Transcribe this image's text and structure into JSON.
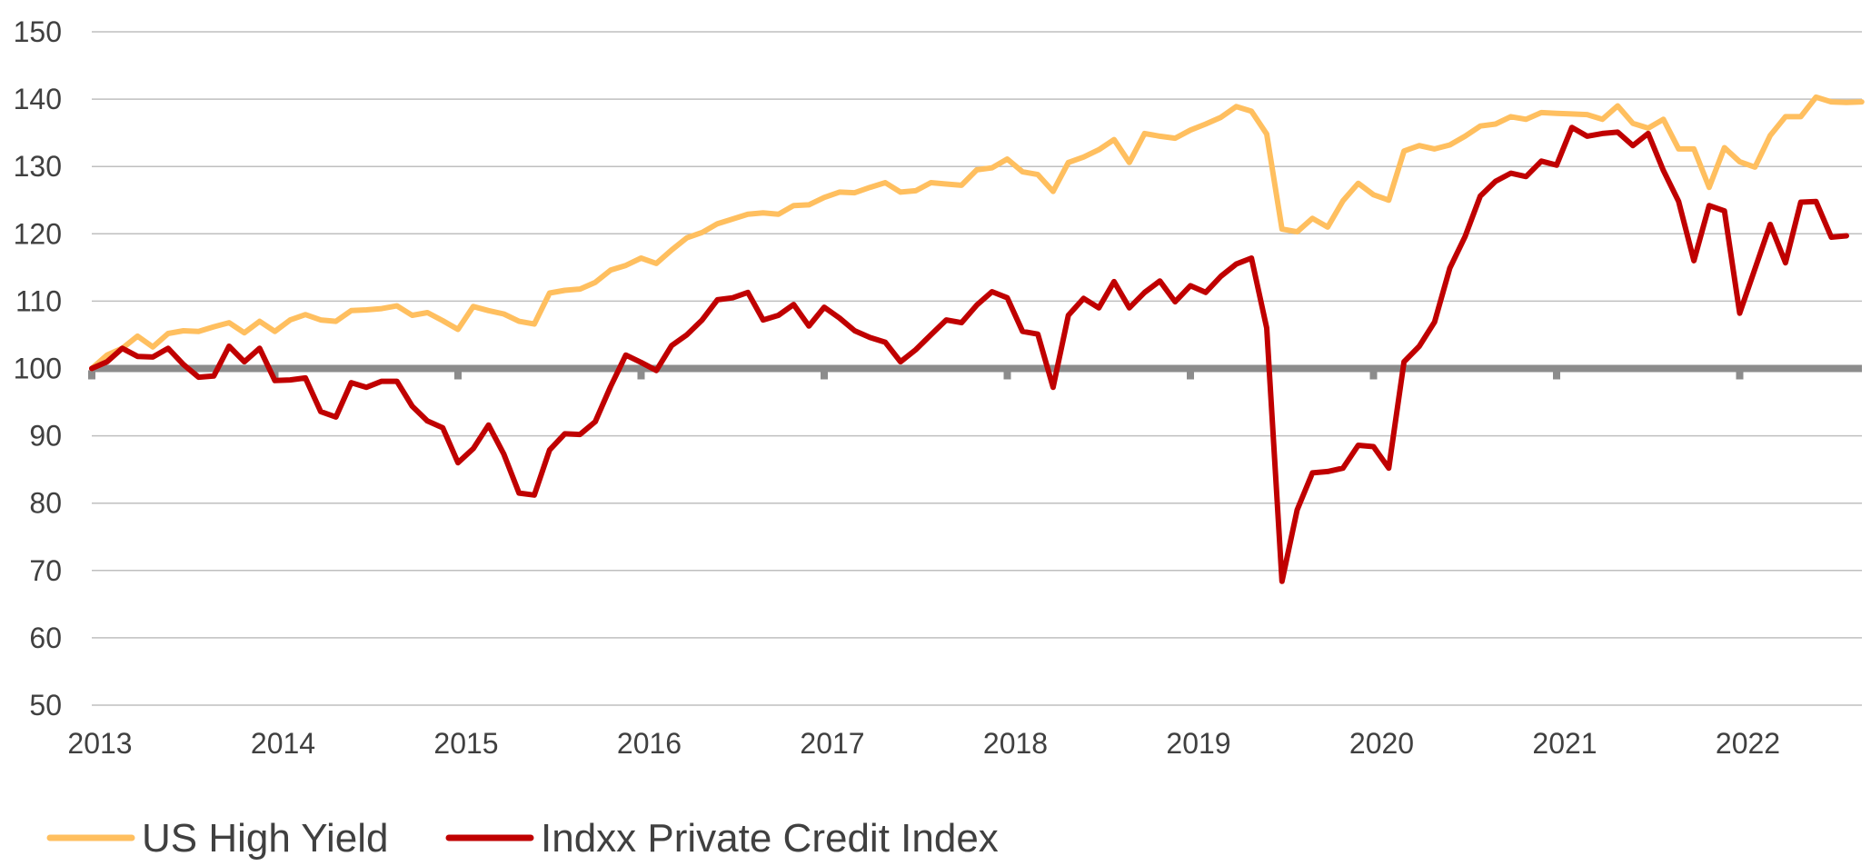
{
  "chart_data": {
    "type": "line",
    "title": "",
    "xlabel": "",
    "ylabel": "",
    "ylim": [
      50,
      150
    ],
    "y_ticks": [
      "50",
      "60",
      "70",
      "80",
      "90",
      "100",
      "110",
      "120",
      "130",
      "140",
      "150"
    ],
    "x_ticks": [
      "2013",
      "2014",
      "2015",
      "2016",
      "2017",
      "2018",
      "2019",
      "2020",
      "2021",
      "2022"
    ],
    "baseline": 100,
    "grid": true,
    "legend_position": "bottom-left",
    "x_start": "2013-01",
    "x_frequency": "monthly",
    "series": [
      {
        "name": "US High Yield",
        "color": "#FFBF5F",
        "values": [
          100.0,
          102.0,
          103.0,
          104.8,
          103.2,
          105.2,
          105.6,
          105.5,
          106.2,
          106.8,
          105.3,
          107.0,
          105.5,
          107.2,
          108.0,
          107.2,
          107.0,
          108.6,
          108.7,
          108.9,
          109.3,
          107.9,
          108.3,
          107.1,
          105.8,
          109.2,
          108.6,
          108.1,
          107.0,
          106.6,
          111.2,
          111.6,
          111.8,
          112.8,
          114.6,
          115.3,
          116.4,
          115.6,
          117.6,
          119.4,
          120.2,
          121.5,
          122.2,
          122.9,
          123.1,
          122.9,
          124.2,
          124.3,
          125.4,
          126.2,
          126.1,
          126.9,
          127.6,
          126.2,
          126.4,
          127.6,
          127.4,
          127.2,
          129.5,
          129.8,
          131.1,
          129.2,
          128.8,
          126.3,
          130.6,
          131.4,
          132.5,
          134.0,
          130.6,
          134.9,
          134.5,
          134.2,
          135.4,
          136.3,
          137.3,
          138.9,
          138.2,
          134.8,
          120.7,
          120.3,
          122.3,
          121.0,
          124.9,
          127.5,
          125.8,
          125.0,
          132.3,
          133.1,
          132.6,
          133.2,
          134.5,
          136.0,
          136.3,
          137.4,
          137.0,
          138.0,
          137.9,
          137.8,
          137.7,
          137.0,
          139.0,
          136.4,
          135.7,
          137.0,
          132.6,
          132.6,
          126.9,
          132.8,
          130.7,
          129.9,
          134.6,
          137.4,
          137.4,
          140.3,
          139.6,
          139.5,
          139.6
        ]
      },
      {
        "name": "Indxx Private Credit Index",
        "color": "#C00000",
        "values": [
          100.0,
          101.0,
          103.0,
          101.8,
          101.7,
          103.0,
          100.6,
          98.7,
          98.9,
          103.3,
          101.0,
          103.0,
          98.2,
          98.3,
          98.6,
          93.6,
          92.8,
          97.9,
          97.2,
          98.1,
          98.1,
          94.4,
          92.2,
          91.2,
          86.0,
          88.1,
          91.6,
          87.3,
          81.5,
          81.2,
          87.9,
          90.3,
          90.2,
          92.1,
          97.3,
          102.0,
          100.9,
          99.7,
          103.4,
          105.0,
          107.2,
          110.2,
          110.5,
          111.3,
          107.2,
          107.9,
          109.5,
          106.3,
          109.1,
          107.5,
          105.6,
          104.6,
          103.9,
          101.0,
          102.8,
          105.0,
          107.2,
          106.8,
          109.4,
          111.4,
          110.5,
          105.5,
          105.1,
          97.2,
          107.9,
          110.4,
          109.0,
          112.9,
          109.0,
          111.3,
          113.0,
          109.9,
          112.3,
          111.3,
          113.7,
          115.5,
          116.4,
          106.0,
          68.4,
          79.0,
          84.5,
          84.7,
          85.2,
          88.6,
          88.4,
          85.2,
          101.0,
          103.3,
          106.9,
          114.9,
          119.6,
          125.6,
          127.8,
          129.0,
          128.5,
          130.8,
          130.2,
          135.8,
          134.5,
          134.9,
          135.1,
          133.1,
          134.9,
          129.4,
          124.8,
          116.0,
          124.2,
          123.4,
          108.2,
          114.8,
          121.4,
          115.7,
          124.7,
          124.8,
          119.5,
          119.7
        ]
      }
    ]
  }
}
